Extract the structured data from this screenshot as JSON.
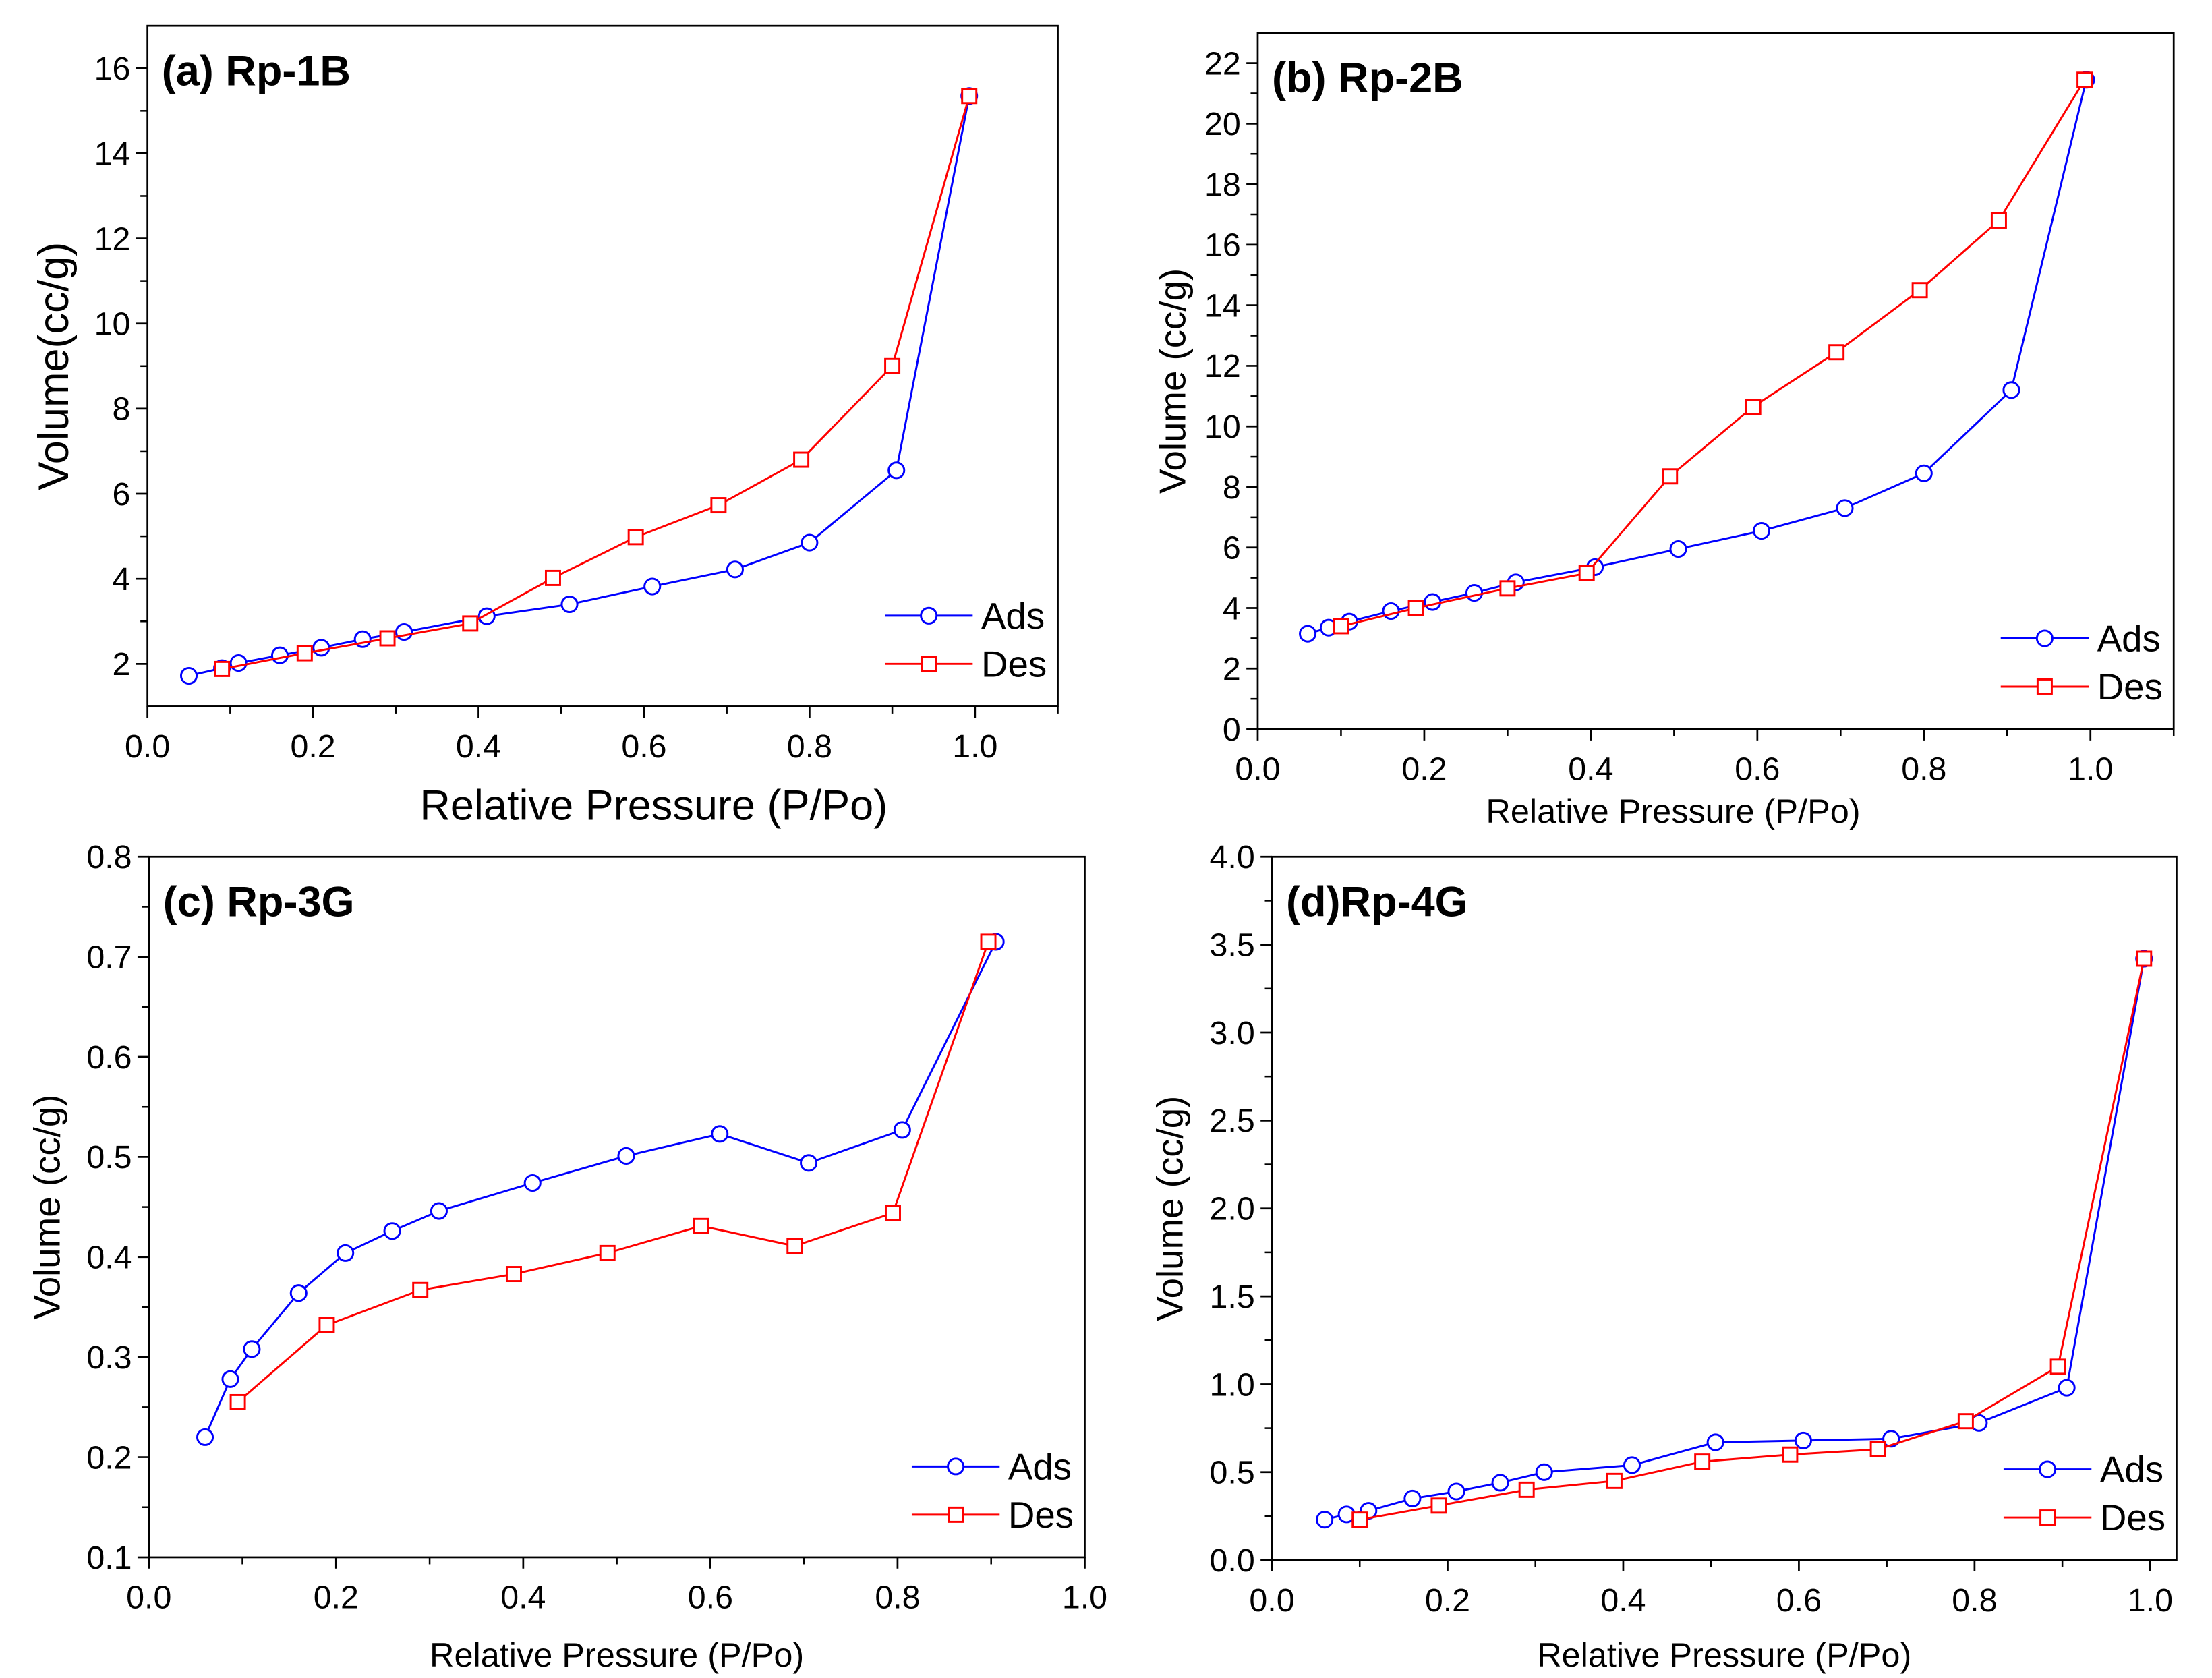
{
  "chart_data": [
    {
      "type": "line",
      "title": "(a) Rp-1B",
      "xlabel": "Relative Pressure (P/Po)",
      "ylabel": "Volume(cc/g)",
      "xlim": [
        0,
        1.1
      ],
      "ylim": [
        1,
        17
      ],
      "xticks": [
        "0.0",
        "0.2",
        "0.4",
        "0.6",
        "0.8",
        "1.0"
      ],
      "yticks": [
        "2",
        "4",
        "6",
        "8",
        "10",
        "12",
        "14",
        "16"
      ],
      "legend": "bottom-right",
      "series": [
        {
          "name": "Ads",
          "color": "#0000ff",
          "marker": "circle",
          "x": [
            0.05,
            0.09,
            0.11,
            0.16,
            0.21,
            0.26,
            0.31,
            0.41,
            0.51,
            0.61,
            0.71,
            0.8,
            0.905,
            0.993
          ],
          "y": [
            1.72,
            1.9,
            2.02,
            2.2,
            2.38,
            2.58,
            2.75,
            3.12,
            3.4,
            3.82,
            4.22,
            4.85,
            6.55,
            15.35
          ]
        },
        {
          "name": "Des",
          "color": "#ff0000",
          "marker": "square",
          "x": [
            0.09,
            0.19,
            0.29,
            0.39,
            0.49,
            0.59,
            0.69,
            0.79,
            0.9,
            0.993
          ],
          "y": [
            1.88,
            2.25,
            2.6,
            2.95,
            4.02,
            4.98,
            5.73,
            6.8,
            9.0,
            15.35
          ]
        }
      ]
    },
    {
      "type": "line",
      "title": "(b) Rp-2B",
      "xlabel": "Relative Pressure (P/Po)",
      "ylabel": "Volume (cc/g)",
      "xlim": [
        0,
        1.1
      ],
      "ylim": [
        0,
        23
      ],
      "xticks": [
        "0.0",
        "0.2",
        "0.4",
        "0.6",
        "0.8",
        "1.0"
      ],
      "yticks": [
        "0",
        "2",
        "4",
        "6",
        "8",
        "10",
        "12",
        "14",
        "16",
        "18",
        "20",
        "22"
      ],
      "legend": "bottom-right",
      "series": [
        {
          "name": "Ads",
          "color": "#0000ff",
          "marker": "circle",
          "x": [
            0.06,
            0.085,
            0.11,
            0.16,
            0.21,
            0.26,
            0.31,
            0.405,
            0.505,
            0.605,
            0.705,
            0.8,
            0.905,
            0.995
          ],
          "y": [
            3.15,
            3.35,
            3.55,
            3.9,
            4.2,
            4.5,
            4.85,
            5.35,
            5.95,
            6.55,
            7.3,
            8.45,
            11.2,
            21.45
          ]
        },
        {
          "name": "Des",
          "color": "#ff0000",
          "marker": "square",
          "x": [
            0.1,
            0.19,
            0.3,
            0.395,
            0.495,
            0.595,
            0.695,
            0.795,
            0.89,
            0.993
          ],
          "y": [
            3.4,
            4.0,
            4.65,
            5.15,
            8.35,
            10.65,
            12.45,
            14.5,
            16.8,
            21.45
          ]
        }
      ]
    },
    {
      "type": "line",
      "title": "(c) Rp-3G",
      "xlabel": "Relative Pressure (P/Po)",
      "ylabel": "Volume (cc/g)",
      "xlim": [
        0,
        1.0
      ],
      "ylim": [
        0.1,
        0.8
      ],
      "xticks": [
        "0.0",
        "0.2",
        "0.4",
        "0.6",
        "0.8",
        "1.0"
      ],
      "yticks": [
        "0.1",
        "0.2",
        "0.3",
        "0.4",
        "0.5",
        "0.6",
        "0.7",
        "0.8"
      ],
      "legend": "bottom-right",
      "series": [
        {
          "name": "Ads",
          "color": "#0000ff",
          "marker": "circle",
          "x": [
            0.06,
            0.087,
            0.11,
            0.16,
            0.21,
            0.26,
            0.31,
            0.41,
            0.51,
            0.61,
            0.705,
            0.805,
            0.905
          ],
          "y": [
            0.22,
            0.278,
            0.308,
            0.364,
            0.404,
            0.426,
            0.446,
            0.474,
            0.501,
            0.523,
            0.494,
            0.527,
            0.715
          ]
        },
        {
          "name": "Des",
          "color": "#ff0000",
          "marker": "square",
          "x": [
            0.095,
            0.19,
            0.29,
            0.39,
            0.49,
            0.59,
            0.69,
            0.795,
            0.897
          ],
          "y": [
            0.255,
            0.332,
            0.367,
            0.383,
            0.404,
            0.431,
            0.411,
            0.444,
            0.715
          ]
        }
      ]
    },
    {
      "type": "line",
      "title": "(d)Rp-4G",
      "xlabel": "Relative Pressure (P/Po)",
      "ylabel": "Volume (cc/g)",
      "xlim": [
        0,
        1.03
      ],
      "ylim": [
        0,
        4.0
      ],
      "xticks": [
        "0.0",
        "0.2",
        "0.4",
        "0.6",
        "0.8",
        "1.0"
      ],
      "yticks": [
        "0.0",
        "0.5",
        "1.0",
        "1.5",
        "2.0",
        "2.5",
        "3.0",
        "3.5",
        "4.0"
      ],
      "legend": "bottom-right",
      "series": [
        {
          "name": "Ads",
          "color": "#0000ff",
          "marker": "circle",
          "x": [
            0.06,
            0.085,
            0.11,
            0.16,
            0.21,
            0.26,
            0.31,
            0.41,
            0.505,
            0.605,
            0.705,
            0.805,
            0.905,
            0.993
          ],
          "y": [
            0.23,
            0.26,
            0.28,
            0.35,
            0.39,
            0.44,
            0.5,
            0.54,
            0.67,
            0.68,
            0.69,
            0.78,
            0.98,
            3.42
          ]
        },
        {
          "name": "Des",
          "color": "#ff0000",
          "marker": "square",
          "x": [
            0.1,
            0.19,
            0.29,
            0.39,
            0.49,
            0.59,
            0.69,
            0.79,
            0.895,
            0.993
          ],
          "y": [
            0.23,
            0.31,
            0.4,
            0.45,
            0.56,
            0.6,
            0.63,
            0.79,
            1.1,
            3.42
          ]
        }
      ]
    }
  ]
}
